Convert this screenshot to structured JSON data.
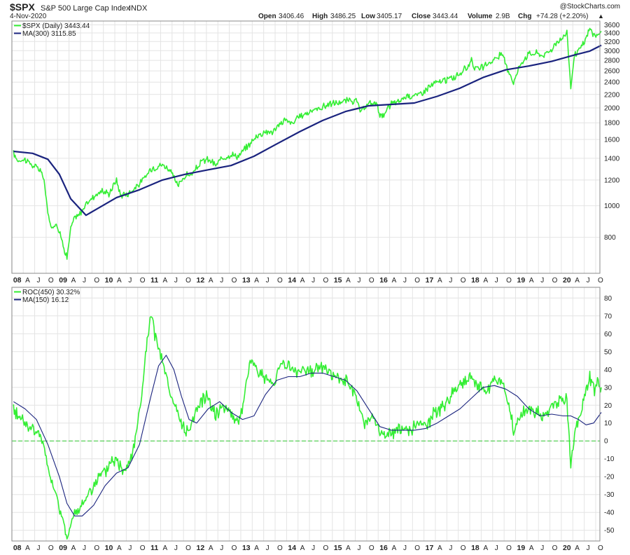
{
  "header": {
    "symbol": "$SPX",
    "name": "S&P 500 Large Cap Index",
    "exchange": "INDX",
    "date": "4-Nov-2020",
    "watermark": "@StockCharts.com",
    "open_label": "Open",
    "open_value": "3406.46",
    "high_label": "High",
    "high_value": "3486.25",
    "low_label": "Low",
    "low_value": "3405.17",
    "close_label": "Close",
    "close_value": "3443.44",
    "volume_label": "Volume",
    "volume_value": "2.9B",
    "chg_label": "Chg",
    "chg_value": "+74.28 (+2.20%)",
    "chg_arrow": "▲"
  },
  "colors": {
    "price": "#33ee33",
    "ma": "#1a237e",
    "zero_line": "#33cc33",
    "up": "#22aa22"
  },
  "chart_data": [
    {
      "type": "line",
      "panel": "price",
      "scale": "log",
      "ylim": [
        620,
        3700
      ],
      "x_range": [
        "2008-01-02",
        "2020-11-04"
      ],
      "y_ticks": [
        800,
        1000,
        1200,
        1400,
        1600,
        1800,
        2000,
        2200,
        2400,
        2600,
        2800,
        3000,
        3200,
        3400,
        3600
      ],
      "x_tick_labels": [
        "08",
        "A",
        "J",
        "O",
        "09",
        "A",
        "J",
        "O",
        "10",
        "A",
        "J",
        "O",
        "11",
        "A",
        "J",
        "O",
        "12",
        "A",
        "J",
        "O",
        "13",
        "A",
        "J",
        "O",
        "14",
        "A",
        "J",
        "O",
        "15",
        "A",
        "J",
        "O",
        "16",
        "A",
        "J",
        "O",
        "17",
        "A",
        "J",
        "O",
        "18",
        "A",
        "J",
        "O",
        "19",
        "A",
        "J",
        "O",
        "20",
        "A",
        "J",
        "O"
      ],
      "legend": [
        "$SPX (Daily) 3443.44",
        "MA(300) 3115.85"
      ],
      "series": [
        {
          "name": "$SPX (Daily)",
          "x": [
            "2008-01",
            "2008-02",
            "2008-04",
            "2008-06",
            "2008-08",
            "2008-09",
            "2008-10",
            "2008-11",
            "2008-12",
            "2009-01",
            "2009-02",
            "2009-03",
            "2009-04",
            "2009-05",
            "2009-06",
            "2009-08",
            "2009-10",
            "2009-12",
            "2010-02",
            "2010-04",
            "2010-05",
            "2010-07",
            "2010-09",
            "2010-11",
            "2011-01",
            "2011-04",
            "2011-06",
            "2011-08",
            "2011-10",
            "2011-12",
            "2012-02",
            "2012-04",
            "2012-06",
            "2012-08",
            "2012-10",
            "2012-12",
            "2013-02",
            "2013-05",
            "2013-07",
            "2013-09",
            "2013-12",
            "2014-02",
            "2014-04",
            "2014-07",
            "2014-09",
            "2014-12",
            "2015-03",
            "2015-05",
            "2015-07",
            "2015-08",
            "2015-10",
            "2015-12",
            "2016-01",
            "2016-02",
            "2016-04",
            "2016-06",
            "2016-08",
            "2016-11",
            "2017-01",
            "2017-03",
            "2017-06",
            "2017-09",
            "2017-12",
            "2018-01",
            "2018-02",
            "2018-04",
            "2018-06",
            "2018-09",
            "2018-10",
            "2018-12",
            "2019-02",
            "2019-04",
            "2019-06",
            "2019-08",
            "2019-10",
            "2019-12",
            "2020-02",
            "2020-03",
            "2020-04",
            "2020-05",
            "2020-06",
            "2020-07",
            "2020-08",
            "2020-09",
            "2020-10",
            "2020-11"
          ],
          "values": [
            1450,
            1380,
            1390,
            1330,
            1290,
            1200,
            940,
            850,
            890,
            830,
            760,
            690,
            850,
            920,
            930,
            1010,
            1070,
            1110,
            1090,
            1200,
            1080,
            1090,
            1140,
            1200,
            1300,
            1340,
            1290,
            1150,
            1240,
            1250,
            1360,
            1390,
            1330,
            1410,
            1440,
            1420,
            1510,
            1650,
            1690,
            1690,
            1840,
            1790,
            1880,
            1960,
            1990,
            2060,
            2080,
            2110,
            2090,
            1930,
            2060,
            2070,
            1920,
            1880,
            2070,
            2090,
            2180,
            2190,
            2280,
            2370,
            2430,
            2500,
            2670,
            2840,
            2620,
            2670,
            2770,
            2920,
            2720,
            2400,
            2750,
            2940,
            2950,
            2900,
            3040,
            3230,
            3380,
            2300,
            2900,
            3000,
            3100,
            3270,
            3500,
            3360,
            3300,
            3443
          ]
        },
        {
          "name": "MA(300)",
          "x": [
            "2008-01",
            "2008-06",
            "2008-10",
            "2009-01",
            "2009-04",
            "2009-08",
            "2009-11",
            "2010-04",
            "2010-10",
            "2011-04",
            "2011-10",
            "2012-04",
            "2012-10",
            "2013-04",
            "2013-10",
            "2014-04",
            "2014-10",
            "2015-04",
            "2015-10",
            "2016-04",
            "2016-10",
            "2017-04",
            "2017-10",
            "2018-04",
            "2018-10",
            "2019-04",
            "2019-10",
            "2020-04",
            "2020-08",
            "2020-11"
          ],
          "values": [
            1470,
            1450,
            1390,
            1250,
            1050,
            935,
            980,
            1060,
            1120,
            1200,
            1250,
            1290,
            1330,
            1420,
            1550,
            1690,
            1830,
            1950,
            2030,
            2050,
            2070,
            2170,
            2300,
            2480,
            2620,
            2690,
            2780,
            2910,
            2990,
            3116
          ]
        }
      ]
    },
    {
      "type": "line",
      "panel": "indicator",
      "ylim": [
        -56,
        86
      ],
      "x_range": [
        "2008-01-02",
        "2020-11-04"
      ],
      "y_ticks": [
        -50,
        -40,
        -30,
        -20,
        -10,
        0,
        10,
        20,
        30,
        40,
        50,
        60,
        70,
        80
      ],
      "x_tick_labels": [
        "08",
        "A",
        "J",
        "O",
        "09",
        "A",
        "J",
        "O",
        "10",
        "A",
        "J",
        "O",
        "11",
        "A",
        "J",
        "O",
        "12",
        "A",
        "J",
        "O",
        "13",
        "A",
        "J",
        "O",
        "14",
        "A",
        "J",
        "O",
        "15",
        "A",
        "J",
        "O",
        "16",
        "A",
        "J",
        "O",
        "17",
        "A",
        "J",
        "O",
        "18",
        "A",
        "J",
        "O",
        "19",
        "A",
        "J",
        "O",
        "20",
        "A",
        "J",
        "O"
      ],
      "legend": [
        "ROC(450) 30.32%",
        "MA(150) 16.12"
      ],
      "series": [
        {
          "name": "ROC(450)",
          "x": [
            "2008-01",
            "2008-02",
            "2008-04",
            "2008-06",
            "2008-08",
            "2008-10",
            "2008-12",
            "2009-02",
            "2009-03",
            "2009-05",
            "2009-07",
            "2009-09",
            "2009-11",
            "2010-01",
            "2010-03",
            "2010-06",
            "2010-08",
            "2010-10",
            "2010-11",
            "2010-12",
            "2011-01",
            "2011-02",
            "2011-04",
            "2011-06",
            "2011-08",
            "2011-10",
            "2011-12",
            "2012-02",
            "2012-04",
            "2012-06",
            "2012-08",
            "2012-10",
            "2012-12",
            "2013-02",
            "2013-03",
            "2013-05",
            "2013-07",
            "2013-09",
            "2013-11",
            "2014-01",
            "2014-03",
            "2014-05",
            "2014-07",
            "2014-09",
            "2014-11",
            "2015-01",
            "2015-03",
            "2015-05",
            "2015-07",
            "2015-09",
            "2015-11",
            "2016-01",
            "2016-03",
            "2016-05",
            "2016-07",
            "2016-09",
            "2016-11",
            "2017-01",
            "2017-03",
            "2017-06",
            "2017-09",
            "2017-12",
            "2018-01",
            "2018-03",
            "2018-05",
            "2018-07",
            "2018-09",
            "2018-11",
            "2018-12",
            "2019-02",
            "2019-04",
            "2019-06",
            "2019-08",
            "2019-10",
            "2019-12",
            "2020-02",
            "2020-03",
            "2020-04",
            "2020-05",
            "2020-06",
            "2020-07",
            "2020-08",
            "2020-09",
            "2020-10",
            "2020-11"
          ],
          "values": [
            17,
            15,
            10,
            6,
            4,
            -15,
            -30,
            -45,
            -53,
            -42,
            -36,
            -28,
            -22,
            -18,
            -10,
            -16,
            -8,
            15,
            35,
            55,
            70,
            60,
            44,
            26,
            15,
            4,
            12,
            22,
            25,
            15,
            20,
            16,
            10,
            30,
            46,
            40,
            35,
            30,
            45,
            42,
            38,
            40,
            38,
            43,
            40,
            36,
            34,
            32,
            22,
            10,
            13,
            5,
            3,
            5,
            8,
            6,
            9,
            8,
            15,
            20,
            30,
            34,
            38,
            30,
            28,
            34,
            33,
            18,
            5,
            15,
            18,
            16,
            13,
            20,
            22,
            24,
            -16,
            5,
            12,
            20,
            28,
            36,
            28,
            34,
            30
          ]
        },
        {
          "name": "MA(150)",
          "x": [
            "2008-01",
            "2008-04",
            "2008-07",
            "2008-10",
            "2009-01",
            "2009-03",
            "2009-05",
            "2009-07",
            "2009-10",
            "2010-01",
            "2010-04",
            "2010-07",
            "2010-10",
            "2011-01",
            "2011-03",
            "2011-05",
            "2011-07",
            "2011-09",
            "2011-11",
            "2012-01",
            "2012-04",
            "2012-07",
            "2012-10",
            "2013-01",
            "2013-04",
            "2013-07",
            "2013-10",
            "2014-01",
            "2014-04",
            "2014-07",
            "2014-10",
            "2015-01",
            "2015-04",
            "2015-07",
            "2015-10",
            "2016-01",
            "2016-04",
            "2016-07",
            "2016-10",
            "2017-01",
            "2017-04",
            "2017-07",
            "2017-10",
            "2018-01",
            "2018-04",
            "2018-07",
            "2018-10",
            "2019-01",
            "2019-04",
            "2019-07",
            "2019-10",
            "2020-01",
            "2020-03",
            "2020-05",
            "2020-07",
            "2020-09",
            "2020-11"
          ],
          "values": [
            22,
            18,
            12,
            -2,
            -20,
            -35,
            -42,
            -42,
            -36,
            -25,
            -18,
            -15,
            -2,
            25,
            42,
            48,
            40,
            25,
            12,
            10,
            18,
            22,
            16,
            12,
            14,
            26,
            34,
            36,
            36,
            38,
            38,
            36,
            34,
            28,
            18,
            8,
            6,
            6,
            6,
            7,
            10,
            14,
            18,
            24,
            30,
            31,
            29,
            25,
            18,
            14,
            15,
            14,
            14,
            12,
            9,
            10,
            16
          ]
        }
      ]
    }
  ]
}
